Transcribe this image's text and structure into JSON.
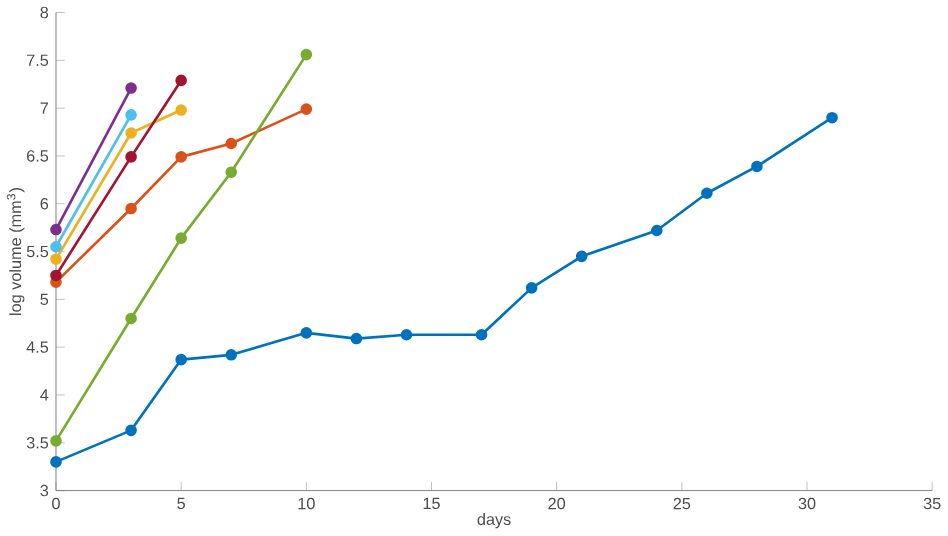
{
  "chart_data": {
    "type": "line",
    "xlabel": "days",
    "ylabel": "log volume (mm$^{3}$)",
    "xlim": [
      0,
      35
    ],
    "ylim": [
      3,
      8
    ],
    "xticks": [
      0,
      5,
      10,
      15,
      20,
      25,
      30,
      35
    ],
    "yticks": [
      3,
      3.5,
      4,
      4.5,
      5,
      5.5,
      6,
      6.5,
      7,
      7.5,
      8
    ],
    "marker": "circle",
    "line_style": "solid",
    "grid": false,
    "series": [
      {
        "color": "#0072bd",
        "x": [
          0,
          3,
          5,
          7,
          10,
          12,
          14,
          17,
          19,
          21,
          24,
          26,
          28,
          31
        ],
        "values": [
          3.3,
          3.63,
          4.37,
          4.42,
          4.65,
          4.59,
          4.63,
          4.63,
          5.12,
          5.45,
          5.72,
          6.11,
          6.39,
          6.9
        ]
      },
      {
        "color": "#d95319",
        "x": [
          0,
          3,
          5,
          7,
          10
        ],
        "values": [
          5.18,
          5.95,
          6.49,
          6.63,
          6.99
        ]
      },
      {
        "color": "#edb120",
        "x": [
          0,
          3,
          5
        ],
        "values": [
          5.42,
          6.74,
          6.98
        ]
      },
      {
        "color": "#7e2f8e",
        "x": [
          0,
          3
        ],
        "values": [
          5.73,
          7.21
        ]
      },
      {
        "color": "#77ac30",
        "x": [
          0,
          3,
          5,
          7,
          10
        ],
        "values": [
          3.52,
          4.8,
          5.64,
          6.33,
          7.56
        ]
      },
      {
        "color": "#4dbeee",
        "x": [
          0,
          3
        ],
        "values": [
          5.55,
          6.93
        ]
      },
      {
        "color": "#a2142f",
        "x": [
          0,
          3,
          5
        ],
        "values": [
          5.25,
          6.49,
          7.29
        ]
      }
    ]
  }
}
